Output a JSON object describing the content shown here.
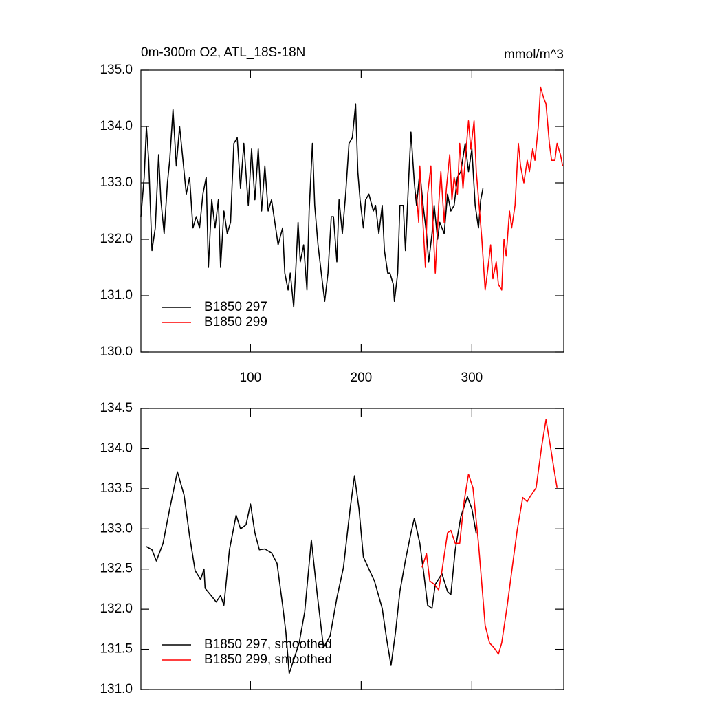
{
  "chart_data": [
    {
      "type": "line",
      "title": "0m-300m O2, ATL_18S-18N",
      "units": "mmol/m^3",
      "xlim": [
        1,
        383
      ],
      "xticks": [
        100,
        200,
        300
      ],
      "ylim": [
        130,
        135
      ],
      "yticks": [
        {
          "value": 130,
          "label": "130.0"
        },
        {
          "value": 131,
          "label": "131.0"
        },
        {
          "value": 132,
          "label": "132.0"
        },
        {
          "value": 133,
          "label": "133.0"
        },
        {
          "value": 134,
          "label": "134.0"
        },
        {
          "value": 135,
          "label": "135.0"
        }
      ],
      "legend": "lower left",
      "series": [
        {
          "name": "B1850 297",
          "color": "#000000",
          "x": [
            1,
            4,
            6,
            8,
            11,
            14,
            17,
            19,
            22,
            25,
            27,
            30,
            33,
            36,
            39,
            42,
            45,
            48,
            51,
            54,
            57,
            60,
            62,
            65,
            68,
            71,
            73,
            76,
            79,
            82,
            85,
            88,
            91,
            94,
            98,
            101,
            104,
            107,
            110,
            113,
            116,
            119,
            122,
            125,
            129,
            131,
            134,
            136,
            139,
            141,
            143,
            145,
            148,
            151,
            153,
            156,
            158,
            161,
            164,
            167,
            170,
            173,
            175,
            178,
            180,
            183,
            186,
            189,
            192,
            195,
            197,
            199,
            202,
            204,
            207,
            211,
            213,
            216,
            219,
            221,
            224,
            226,
            229,
            230,
            233,
            235,
            238,
            240,
            243,
            245,
            248,
            250,
            253,
            256,
            259,
            261,
            264,
            266,
            269,
            271,
            275,
            278,
            281,
            284,
            287,
            290,
            294,
            297,
            300,
            303,
            306,
            308,
            310
          ],
          "values": [
            132.4,
            133.1,
            134.0,
            133.4,
            131.8,
            132.2,
            133.5,
            132.7,
            132.1,
            133.0,
            133.4,
            134.3,
            133.3,
            134.0,
            133.4,
            132.8,
            133.1,
            132.2,
            132.4,
            132.2,
            132.8,
            133.1,
            131.5,
            132.7,
            132.2,
            132.7,
            131.5,
            132.5,
            132.1,
            132.3,
            133.7,
            133.8,
            132.9,
            133.7,
            132.6,
            133.6,
            132.7,
            133.6,
            132.5,
            133.3,
            132.5,
            132.7,
            132.3,
            131.9,
            132.2,
            131.4,
            131.1,
            131.4,
            130.8,
            131.5,
            132.3,
            131.6,
            131.9,
            131.1,
            132.5,
            133.7,
            132.6,
            131.9,
            131.4,
            130.9,
            131.4,
            132.4,
            132.4,
            131.6,
            132.7,
            132.1,
            132.8,
            133.7,
            133.8,
            134.4,
            133.2,
            132.7,
            132.2,
            132.7,
            132.8,
            132.5,
            132.6,
            132.1,
            132.6,
            131.8,
            131.4,
            131.4,
            131.2,
            130.9,
            131.4,
            132.6,
            132.6,
            131.8,
            133.1,
            133.9,
            133.0,
            132.6,
            133.2,
            132.6,
            132.1,
            131.6,
            132.1,
            132.6,
            132.0,
            132.3,
            132.1,
            132.8,
            132.5,
            132.6,
            133.1,
            133.2,
            133.7,
            133.2,
            133.6,
            132.6,
            132.2,
            132.7,
            132.9
          ]
        },
        {
          "name": "B1850 299",
          "color": "#ff0000",
          "x": [
            250,
            252,
            253,
            255,
            258,
            260,
            263,
            265,
            267,
            270,
            272,
            275,
            277,
            280,
            282,
            284,
            287,
            289,
            292,
            294,
            297,
            299,
            302,
            304,
            307,
            309,
            312,
            314,
            317,
            319,
            322,
            324,
            327,
            329,
            331,
            334,
            336,
            339,
            342,
            344,
            347,
            350,
            352,
            355,
            357,
            360,
            362,
            365,
            367,
            370,
            372,
            375,
            377,
            380,
            382
          ],
          "values": [
            132.8,
            132.3,
            133.3,
            132.6,
            131.5,
            132.8,
            133.3,
            132.2,
            131.4,
            132.6,
            133.2,
            132.3,
            132.9,
            133.5,
            132.7,
            133.1,
            132.8,
            133.7,
            132.9,
            133.4,
            134.1,
            133.6,
            134.1,
            133.2,
            132.5,
            132.0,
            131.1,
            131.4,
            131.9,
            131.3,
            131.6,
            131.2,
            131.1,
            132.0,
            131.7,
            132.5,
            132.2,
            132.6,
            133.7,
            133.3,
            133.0,
            133.4,
            133.2,
            133.6,
            133.4,
            134.0,
            134.7,
            134.5,
            134.4,
            133.7,
            133.4,
            133.4,
            133.7,
            133.5,
            133.3
          ]
        }
      ]
    },
    {
      "type": "line",
      "xlim": [
        1,
        383
      ],
      "xticks": [
        100,
        200,
        300
      ],
      "ylim": [
        131,
        134.5
      ],
      "yticks": [
        {
          "value": 131,
          "label": "131.0"
        },
        131.5,
        {
          "value": 132,
          "label": "132.0"
        },
        132.5,
        {
          "value": 133,
          "label": "133.0"
        },
        133.5,
        {
          "value": 134,
          "label": "134.0"
        },
        134.5
      ],
      "legend": "lower left",
      "series": [
        {
          "name": "B1850 297, smoothed",
          "color": "#000000",
          "x": [
            6,
            11,
            15,
            21,
            27,
            34,
            40,
            45,
            50,
            55,
            58,
            59,
            65,
            69,
            73,
            76,
            81,
            87,
            91,
            96,
            100,
            104,
            108,
            113,
            119,
            124,
            129,
            132,
            135,
            140,
            144,
            149,
            155,
            160,
            166,
            172,
            178,
            184,
            190,
            194,
            198,
            202,
            207,
            212,
            219,
            223,
            227,
            231,
            235,
            240,
            245,
            248,
            253,
            257,
            260,
            264,
            267,
            273,
            278,
            281,
            285,
            290,
            296,
            300,
            304
          ],
          "values": [
            132.78,
            132.74,
            132.6,
            132.82,
            133.25,
            133.71,
            133.42,
            132.91,
            132.48,
            132.37,
            132.5,
            132.26,
            132.16,
            132.09,
            132.17,
            132.05,
            132.74,
            133.17,
            133.0,
            133.05,
            133.31,
            132.95,
            132.74,
            132.75,
            132.7,
            132.57,
            132.05,
            131.71,
            131.2,
            131.41,
            131.58,
            131.97,
            132.86,
            132.22,
            131.52,
            131.67,
            132.14,
            132.52,
            133.25,
            133.66,
            133.25,
            132.65,
            132.5,
            132.35,
            132.01,
            131.63,
            131.3,
            131.71,
            132.22,
            132.61,
            132.95,
            133.13,
            132.82,
            132.4,
            132.05,
            132.01,
            132.31,
            132.44,
            132.22,
            132.18,
            132.74,
            133.15,
            133.4,
            133.25,
            132.94
          ]
        },
        {
          "name": "B1850 299, smoothed",
          "color": "#ff0000",
          "x": [
            255,
            259,
            262,
            266,
            270,
            273,
            278,
            281,
            285,
            289,
            293,
            297,
            301,
            306,
            309,
            312,
            316,
            320,
            324,
            327,
            332,
            337,
            341,
            346,
            350,
            353,
            358,
            363,
            367,
            371,
            374,
            377
          ],
          "values": [
            132.52,
            132.69,
            132.35,
            132.31,
            132.24,
            132.48,
            132.95,
            132.98,
            132.82,
            132.82,
            133.34,
            133.68,
            133.51,
            132.82,
            132.31,
            131.8,
            131.58,
            131.52,
            131.44,
            131.58,
            132.05,
            132.57,
            132.99,
            133.39,
            133.34,
            133.41,
            133.51,
            134.02,
            134.36,
            134.02,
            133.76,
            133.51
          ]
        }
      ]
    }
  ]
}
